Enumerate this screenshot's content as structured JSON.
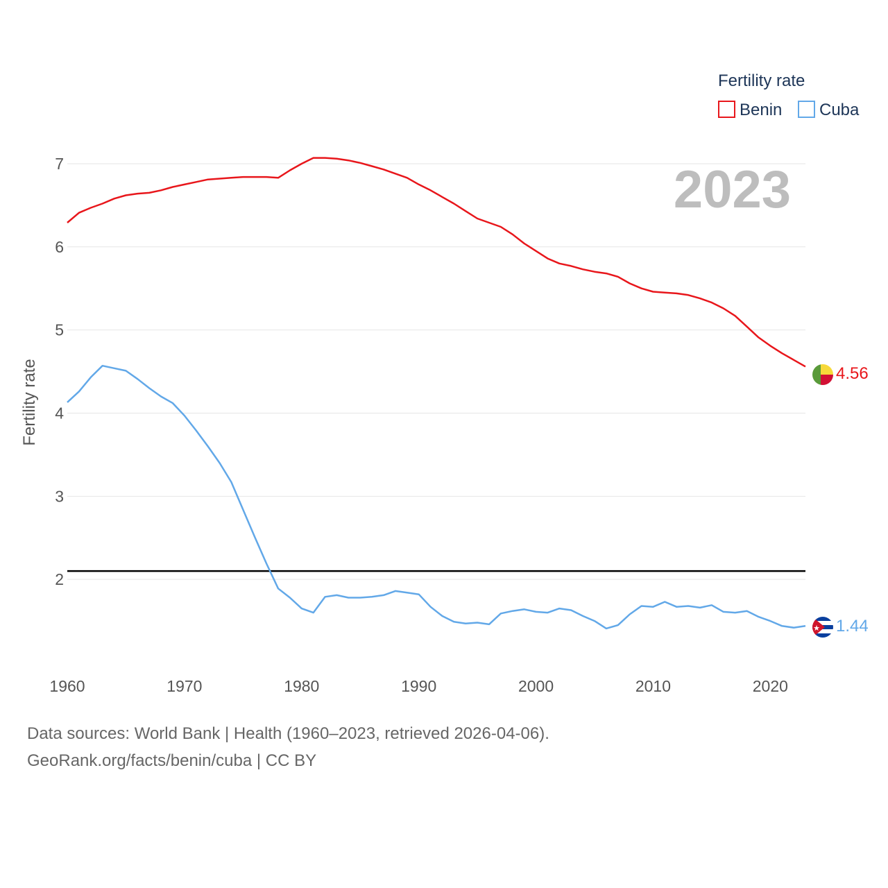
{
  "chart_data": {
    "type": "line",
    "title": "Fertility rate",
    "year_display": "2023",
    "xlabel": "",
    "ylabel": "Fertility rate",
    "xlim": [
      1960,
      2023
    ],
    "ylim": [
      1.0,
      7.3
    ],
    "x_ticks": [
      1960,
      1970,
      1980,
      1990,
      2000,
      2010,
      2020
    ],
    "y_ticks": [
      2,
      3,
      4,
      5,
      6,
      7
    ],
    "reference_line": {
      "y": 2.1,
      "color": "#000000"
    },
    "legend": {
      "title": "Fertility rate",
      "position": "top-right"
    },
    "x": [
      1960,
      1961,
      1962,
      1963,
      1964,
      1965,
      1966,
      1967,
      1968,
      1969,
      1970,
      1971,
      1972,
      1973,
      1974,
      1975,
      1976,
      1977,
      1978,
      1979,
      1980,
      1981,
      1982,
      1983,
      1984,
      1985,
      1986,
      1987,
      1988,
      1989,
      1990,
      1991,
      1992,
      1993,
      1994,
      1995,
      1996,
      1997,
      1998,
      1999,
      2000,
      2001,
      2002,
      2003,
      2004,
      2005,
      2006,
      2007,
      2008,
      2009,
      2010,
      2011,
      2012,
      2013,
      2014,
      2015,
      2016,
      2017,
      2018,
      2019,
      2020,
      2021,
      2022,
      2023
    ],
    "series": [
      {
        "name": "Benin",
        "color": "#e8161b",
        "end_label": "4.56",
        "flag": "benin",
        "values": [
          6.29,
          6.41,
          6.47,
          6.52,
          6.58,
          6.62,
          6.64,
          6.65,
          6.68,
          6.72,
          6.75,
          6.78,
          6.81,
          6.82,
          6.83,
          6.84,
          6.84,
          6.84,
          6.83,
          6.92,
          7.0,
          7.07,
          7.07,
          7.06,
          7.04,
          7.01,
          6.97,
          6.93,
          6.88,
          6.83,
          6.75,
          6.68,
          6.6,
          6.52,
          6.43,
          6.34,
          6.29,
          6.24,
          6.15,
          6.04,
          5.95,
          5.86,
          5.8,
          5.77,
          5.73,
          5.7,
          5.68,
          5.64,
          5.56,
          5.5,
          5.46,
          5.45,
          5.44,
          5.42,
          5.38,
          5.33,
          5.26,
          5.17,
          5.04,
          4.91,
          4.81,
          4.72,
          4.64,
          4.56
        ]
      },
      {
        "name": "Cuba",
        "color": "#62a8e8",
        "end_label": "1.44",
        "flag": "cuba",
        "values": [
          4.13,
          4.26,
          4.43,
          4.57,
          4.54,
          4.51,
          4.41,
          4.3,
          4.2,
          4.12,
          3.97,
          3.79,
          3.6,
          3.4,
          3.17,
          2.84,
          2.51,
          2.19,
          1.89,
          1.78,
          1.65,
          1.6,
          1.79,
          1.81,
          1.78,
          1.78,
          1.79,
          1.81,
          1.86,
          1.84,
          1.82,
          1.67,
          1.56,
          1.49,
          1.47,
          1.48,
          1.46,
          1.59,
          1.62,
          1.64,
          1.61,
          1.6,
          1.65,
          1.63,
          1.56,
          1.5,
          1.41,
          1.45,
          1.58,
          1.68,
          1.67,
          1.73,
          1.67,
          1.68,
          1.66,
          1.69,
          1.61,
          1.6,
          1.62,
          1.55,
          1.5,
          1.44,
          1.42,
          1.44
        ]
      }
    ]
  },
  "footer": {
    "line1": "Data sources: World Bank | Health (1960–2023, retrieved 2026-04-06).",
    "line2": "GeoRank.org/facts/benin/cuba | CC BY"
  }
}
